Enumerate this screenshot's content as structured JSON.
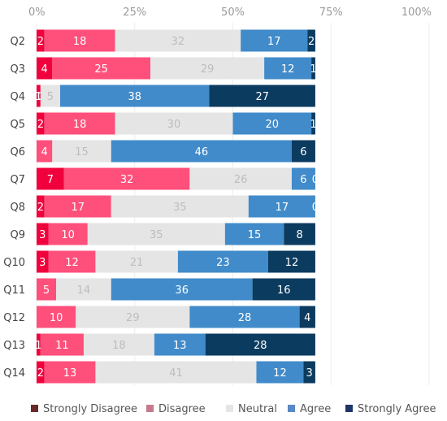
{
  "chart_data": {
    "type": "bar",
    "orientation": "horizontal",
    "stacked": true,
    "title": "",
    "xlabel": "",
    "ylabel": "",
    "xlim": [
      0,
      100
    ],
    "x_unit": "%",
    "x_ticks": [
      "0%",
      "25%",
      "50%",
      "75%",
      "100%"
    ],
    "grid": true,
    "legend_position": "bottom",
    "categories": [
      "Q2",
      "Q3",
      "Q4",
      "Q5",
      "Q6",
      "Q7",
      "Q8",
      "Q9",
      "Q10",
      "Q11",
      "Q12",
      "Q13",
      "Q14"
    ],
    "series": [
      {
        "name": "Strongly Disagree",
        "color": "#F0003C",
        "values": [
          2,
          4,
          1,
          2,
          0,
          7,
          2,
          3,
          3,
          0,
          0,
          1,
          2
        ]
      },
      {
        "name": "Disagree",
        "color": "#FF4F7B",
        "values": [
          18,
          25,
          0,
          18,
          4,
          32,
          17,
          10,
          12,
          5,
          10,
          11,
          13
        ]
      },
      {
        "name": "Neutral",
        "color": "#E5E5E5",
        "values": [
          32,
          29,
          5,
          30,
          15,
          26,
          35,
          35,
          21,
          14,
          29,
          18,
          41
        ]
      },
      {
        "name": "Agree",
        "color": "#418BCA",
        "values": [
          17,
          12,
          38,
          20,
          46,
          6,
          17,
          15,
          23,
          36,
          28,
          13,
          12
        ]
      },
      {
        "name": "Strongly Agree",
        "color": "#0C3B60",
        "values": [
          2,
          1,
          27,
          1,
          6,
          0,
          0,
          8,
          12,
          16,
          4,
          28,
          3
        ]
      }
    ],
    "legend_swatch_colors": [
      "#6B2A2A",
      "#C47A8C",
      "#E5E5E5",
      "#5A88C6",
      "#1F3468"
    ],
    "label_colors": [
      "#FFFFFF",
      "#FFFFFF",
      "#BDBDBD",
      "#FFFFFF",
      "#FFFFFF"
    ]
  }
}
